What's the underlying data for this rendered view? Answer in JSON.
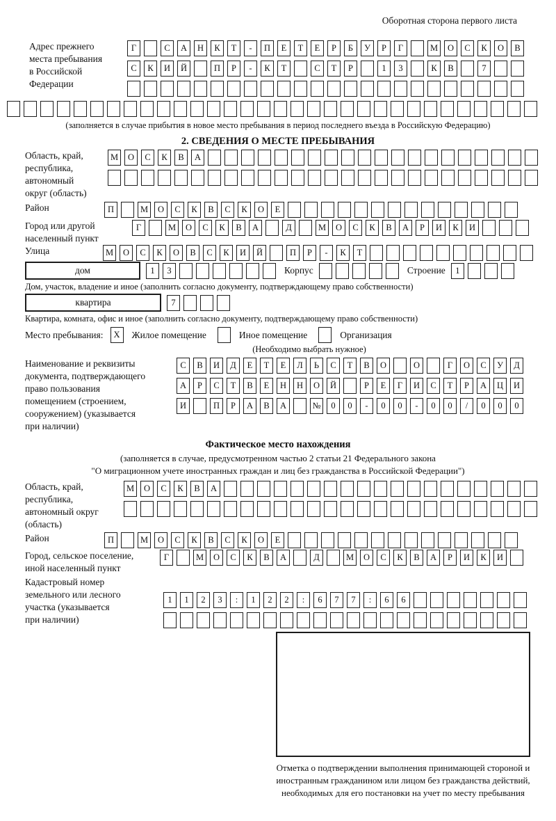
{
  "header": {
    "note": "Оборотная сторона первого листа"
  },
  "prev_address": {
    "label": "Адрес прежнего\nместа пребывания\nв Российской\nФедерации",
    "rows": [
      [
        "Г",
        "",
        "С",
        "А",
        "Н",
        "К",
        "Т",
        "-",
        "П",
        "Е",
        "Т",
        "Е",
        "Р",
        "Б",
        "У",
        "Р",
        "Г",
        "",
        "М",
        "О",
        "С",
        "К",
        "О",
        "В"
      ],
      [
        "С",
        "К",
        "И",
        "Й",
        "",
        "П",
        "Р",
        "-",
        "К",
        "Т",
        "",
        "С",
        "Т",
        "Р",
        "",
        "1",
        "3",
        "",
        "К",
        "В",
        "",
        "7",
        "",
        ""
      ],
      [
        "",
        "",
        "",
        "",
        "",
        "",
        "",
        "",
        "",
        "",
        "",
        "",
        "",
        "",
        "",
        "",
        "",
        "",
        "",
        "",
        "",
        "",
        "",
        ""
      ],
      [
        "",
        "",
        "",
        "",
        "",
        "",
        "",
        "",
        "",
        "",
        "",
        "",
        "",
        "",
        "",
        "",
        "",
        "",
        "",
        "",
        "",
        "",
        "",
        "",
        "",
        "",
        "",
        "",
        "",
        "",
        "",
        ""
      ]
    ],
    "footnote": "(заполняется в случае прибытия в новое место пребывания в период последнего въезда в Российскую Федерацию)"
  },
  "section2": {
    "title": "2. СВЕДЕНИЯ О МЕСТЕ ПРЕБЫВАНИЯ",
    "region": {
      "label": "Область, край,\nреспублика,\nавтономный\nокруг (область)",
      "rows": [
        [
          "М",
          "О",
          "С",
          "К",
          "В",
          "А",
          "",
          "",
          "",
          "",
          "",
          "",
          "",
          "",
          "",
          "",
          "",
          "",
          "",
          "",
          "",
          "",
          "",
          "",
          "",
          ""
        ],
        [
          "",
          "",
          "",
          "",
          "",
          "",
          "",
          "",
          "",
          "",
          "",
          "",
          "",
          "",
          "",
          "",
          "",
          "",
          "",
          "",
          "",
          "",
          "",
          "",
          "",
          ""
        ]
      ]
    },
    "district": {
      "label": "Район",
      "cells": [
        "П",
        "",
        "М",
        "О",
        "С",
        "К",
        "В",
        "С",
        "К",
        "О",
        "Е",
        "",
        "",
        "",
        "",
        "",
        "",
        "",
        "",
        "",
        "",
        "",
        "",
        "",
        ""
      ]
    },
    "city": {
      "label": "Город или другой\nнаселенный пункт",
      "cells": [
        "Г",
        "",
        "М",
        "О",
        "С",
        "К",
        "В",
        "А",
        "",
        "Д",
        "",
        "М",
        "О",
        "С",
        "К",
        "В",
        "А",
        "Р",
        "И",
        "К",
        "И",
        "",
        "",
        ""
      ]
    },
    "street": {
      "label": "Улица",
      "cells": [
        "М",
        "О",
        "С",
        "К",
        "О",
        "В",
        "С",
        "К",
        "И",
        "Й",
        "",
        "П",
        "Р",
        "-",
        "К",
        "Т",
        "",
        "",
        "",
        "",
        "",
        "",
        "",
        "",
        "",
        ""
      ]
    },
    "house": {
      "box_label": "дом",
      "number_cells": [
        "1",
        "3",
        "",
        "",
        "",
        "",
        "",
        ""
      ],
      "korpus_label": "Корпус",
      "korpus_cells": [
        "",
        "",
        "",
        "",
        ""
      ],
      "stroenie_label": "Строение",
      "stroenie_cells": [
        "1",
        "",
        "",
        ""
      ],
      "note": "Дом, участок, владение и иное (заполнить согласно документу, подтверждающему право собственности)"
    },
    "apartment": {
      "box_label": "квартира",
      "cells": [
        "7",
        "",
        "",
        ""
      ],
      "note": "Квартира, комната, офис и иное (заполнить согласно документу, подтверждающему право собственности)"
    },
    "stay_type": {
      "label": "Место пребывания:",
      "options": [
        {
          "cell": [
            "X"
          ],
          "label": "Жилое помещение"
        },
        {
          "cell": [
            ""
          ],
          "label": "Иное помещение"
        },
        {
          "cell": [
            ""
          ],
          "label": "Организация"
        }
      ],
      "note": "(Необходимо выбрать нужное)"
    },
    "document": {
      "label": "Наименование и реквизиты\nдокумента, подтверждающего\nправо пользования\nпомещением (строением,\nсооружением) (указывается\nпри наличии)",
      "rows": [
        [
          "С",
          "В",
          "И",
          "Д",
          "Е",
          "Т",
          "Е",
          "Л",
          "Ь",
          "С",
          "Т",
          "В",
          "О",
          "",
          "О",
          "",
          "Г",
          "О",
          "С",
          "У",
          "Д"
        ],
        [
          "А",
          "Р",
          "С",
          "Т",
          "В",
          "Е",
          "Н",
          "Н",
          "О",
          "Й",
          "",
          "Р",
          "Е",
          "Г",
          "И",
          "С",
          "Т",
          "Р",
          "А",
          "Ц",
          "И"
        ],
        [
          "И",
          "",
          "П",
          "Р",
          "А",
          "В",
          "А",
          "",
          "№",
          "0",
          "0",
          "-",
          "0",
          "0",
          "-",
          "0",
          "0",
          "/",
          "0",
          "0",
          "0"
        ]
      ]
    }
  },
  "actual": {
    "title": "Фактическое место нахождения",
    "note_line1": "(заполняется в случае, предусмотренном частью 2 статьи 21 Федерального закона",
    "note_line2": "\"О миграционном учете иностранных граждан и лиц без гражданства в Российской Федерации\")",
    "region": {
      "label": "Область, край,\nреспублика,\nавтономный округ\n(область)",
      "rows": [
        [
          "М",
          "О",
          "С",
          "К",
          "В",
          "А",
          "",
          "",
          "",
          "",
          "",
          "",
          "",
          "",
          "",
          "",
          "",
          "",
          "",
          "",
          "",
          "",
          "",
          "",
          ""
        ],
        [
          "",
          "",
          "",
          "",
          "",
          "",
          "",
          "",
          "",
          "",
          "",
          "",
          "",
          "",
          "",
          "",
          "",
          "",
          "",
          "",
          "",
          "",
          "",
          "",
          ""
        ]
      ]
    },
    "district": {
      "label": "Район",
      "cells": [
        "П",
        "",
        "М",
        "О",
        "С",
        "К",
        "В",
        "С",
        "К",
        "О",
        "Е",
        "",
        "",
        "",
        "",
        "",
        "",
        "",
        "",
        "",
        "",
        "",
        "",
        "",
        ""
      ]
    },
    "city": {
      "label": "Город, сельское поселение,\nиной населенный пункт",
      "cells": [
        "Г",
        "",
        "М",
        "О",
        "С",
        "К",
        "В",
        "А",
        "",
        "Д",
        "",
        "М",
        "О",
        "С",
        "К",
        "В",
        "А",
        "Р",
        "И",
        "К",
        "И",
        ""
      ]
    },
    "cadastre": {
      "label": "Кадастровый номер\nземельного или лесного\nучастка (указывается\nпри наличии)",
      "rows": [
        [
          "1",
          "1",
          "2",
          "3",
          ":",
          "1",
          "2",
          "2",
          ":",
          "6",
          "7",
          "7",
          ":",
          "6",
          "6",
          "",
          "",
          "",
          "",
          "",
          "",
          ""
        ],
        [
          "",
          "",
          "",
          "",
          "",
          "",
          "",
          "",
          "",
          "",
          "",
          "",
          "",
          "",
          "",
          "",
          "",
          "",
          "",
          "",
          "",
          ""
        ]
      ]
    },
    "stamp_caption": "Отметка о подтверждении выполнения принимающей стороной и иностранным гражданином или лицом без гражданства действий, необходимых для его постановки на учет по месту пребывания"
  }
}
